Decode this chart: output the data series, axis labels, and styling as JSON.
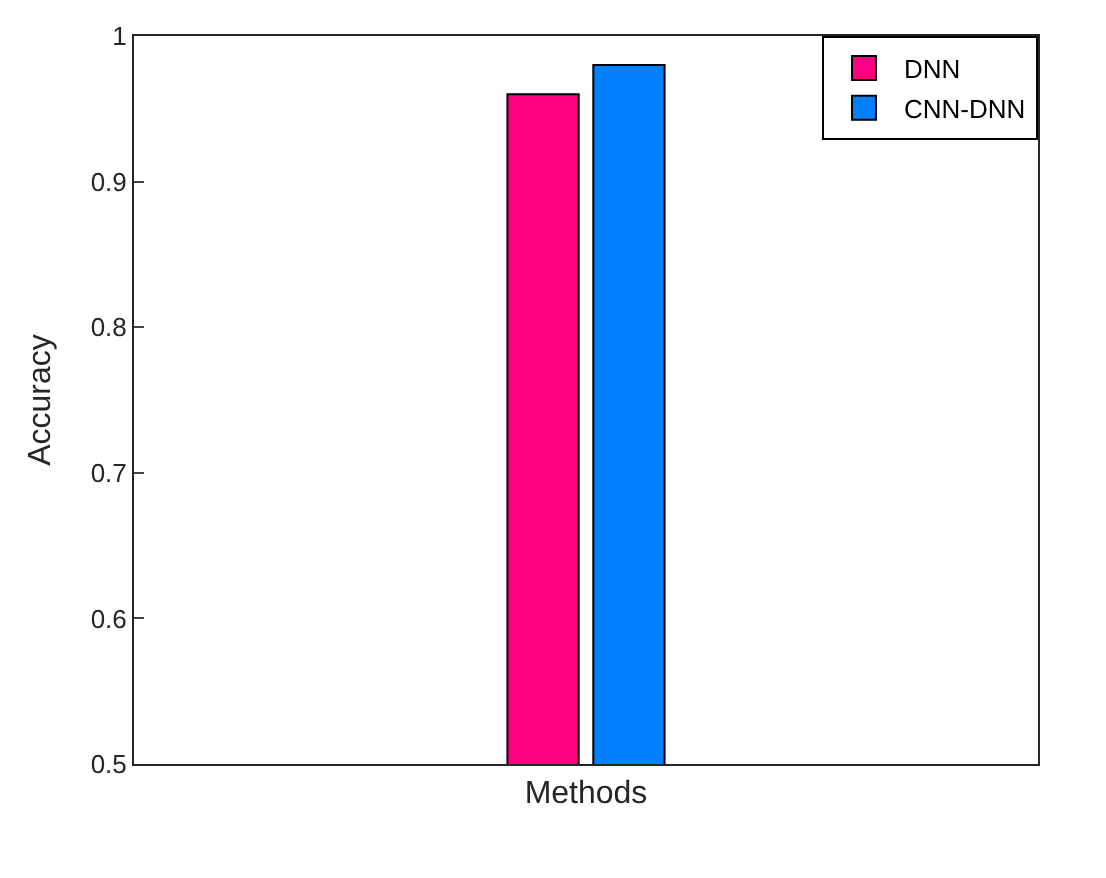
{
  "chart_data": {
    "type": "bar",
    "xlabel": "Methods",
    "ylabel": "Accuracy",
    "categories": [
      null
    ],
    "series": [
      {
        "name": "DNN",
        "color": "#ff0080",
        "values": [
          0.96
        ]
      },
      {
        "name": "CNN-DNN",
        "color": "#0080ff",
        "values": [
          0.98
        ]
      }
    ],
    "ylim": [
      0.5,
      1
    ],
    "yticks": [
      0.5,
      0.6,
      0.7,
      0.8,
      0.9,
      1
    ],
    "legend": "top right",
    "tick_labels": "y"
  }
}
